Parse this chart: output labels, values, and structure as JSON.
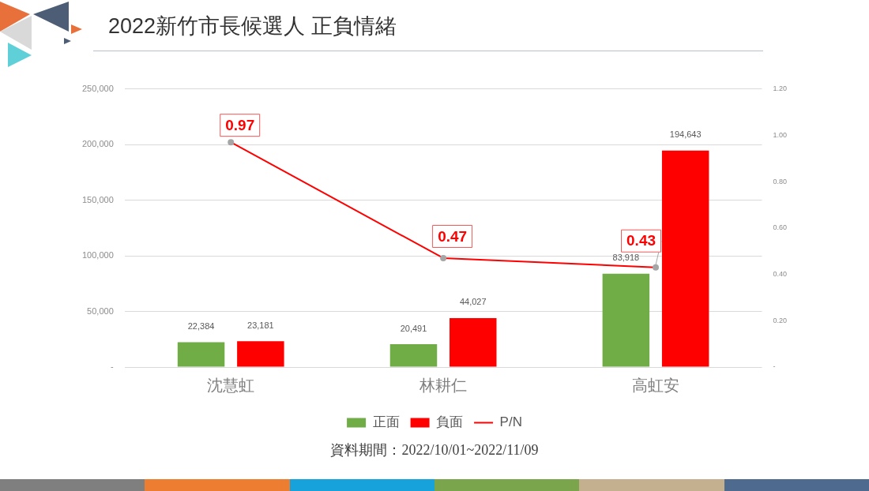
{
  "chart_data": {
    "type": "bar",
    "title": "2022新竹市長候選人 正負情緒",
    "categories": [
      "沈慧虹",
      "林耕仁",
      "高虹安"
    ],
    "series": [
      {
        "name": "正面",
        "color": "#70ad47",
        "values": [
          22384,
          20491,
          83918
        ],
        "value_labels": [
          "22,384",
          "20,491",
          "83,918"
        ]
      },
      {
        "name": "負面",
        "color": "#ff0000",
        "values": [
          23181,
          44027,
          194643
        ],
        "value_labels": [
          "23,181",
          "44,027",
          "194,643"
        ]
      },
      {
        "name": "P/N",
        "type": "line",
        "color": "#ff0000",
        "axis": "y2",
        "marker": "circle",
        "values": [
          0.97,
          0.47,
          0.43
        ],
        "value_labels": [
          "0.97",
          "0.47",
          "0.43"
        ]
      }
    ],
    "ylim": [
      0,
      250000
    ],
    "yticks": [
      {
        "value": 0,
        "label": "-"
      },
      {
        "value": 50000,
        "label": "50,000"
      },
      {
        "value": 100000,
        "label": "100,000"
      },
      {
        "value": 150000,
        "label": "150,000"
      },
      {
        "value": 200000,
        "label": "200,000"
      },
      {
        "value": 250000,
        "label": "250,000"
      }
    ],
    "y2lim": [
      0,
      1.2
    ],
    "y2ticks": [
      {
        "value": 0,
        "label": "-"
      },
      {
        "value": 0.2,
        "label": "0.20"
      },
      {
        "value": 0.4,
        "label": "0.40"
      },
      {
        "value": 0.6,
        "label": "0.60"
      },
      {
        "value": 0.8,
        "label": "0.80"
      },
      {
        "value": 1,
        "label": "1.00"
      },
      {
        "value": 1.2,
        "label": "1.20"
      }
    ],
    "grid": "y",
    "legend": "bottom",
    "annotations": [
      "資料期間：2022/10/01~2022/11/09"
    ]
  }
}
